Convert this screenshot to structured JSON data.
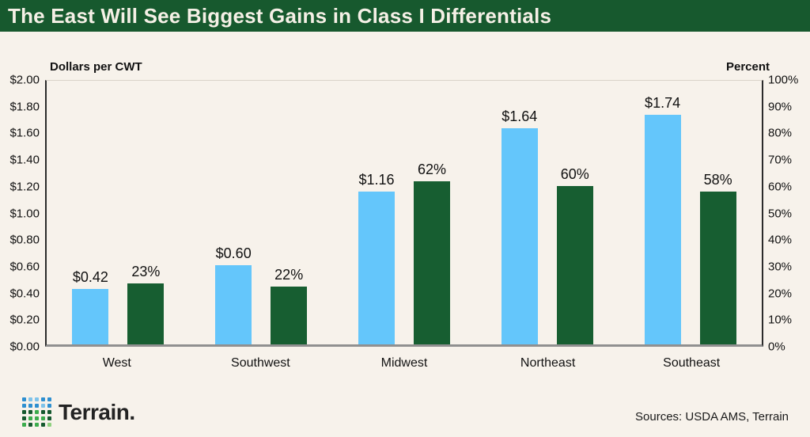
{
  "header": {
    "title": "The East Will See Biggest Gains in Class I Differentials"
  },
  "chart_data": {
    "type": "bar",
    "title": "The East Will See Biggest Gains in Class I Differentials",
    "categories": [
      "West",
      "Southwest",
      "Midwest",
      "Northeast",
      "Southeast"
    ],
    "series": [
      {
        "name": "Dollars per CWT",
        "axis": "left",
        "color": "#64C6FB",
        "values": [
          0.42,
          0.6,
          1.16,
          1.64,
          1.74
        ],
        "labels": [
          "$0.42",
          "$0.60",
          "$1.16",
          "$1.64",
          "$1.74"
        ]
      },
      {
        "name": "Percent",
        "axis": "right",
        "color": "#175E31",
        "values": [
          23,
          22,
          62,
          60,
          58
        ],
        "labels": [
          "23%",
          "22%",
          "62%",
          "60%",
          "58%"
        ]
      }
    ],
    "left_axis": {
      "title": "Dollars per CWT",
      "min": 0,
      "max": 2,
      "tick_step": 0.2,
      "ticks": [
        "$2.00",
        "$1.80",
        "$1.60",
        "$1.40",
        "$1.20",
        "$1.00",
        "$0.80",
        "$0.60",
        "$0.40",
        "$0.20",
        "$0.00"
      ]
    },
    "right_axis": {
      "title": "Percent",
      "min": 0,
      "max": 100,
      "tick_step": 10,
      "ticks": [
        "100%",
        "90%",
        "80%",
        "70%",
        "60%",
        "50%",
        "40%",
        "30%",
        "20%",
        "10%",
        "0%"
      ]
    },
    "grid": false,
    "legend": "none"
  },
  "footer": {
    "wordmark": "Terrain.",
    "sources": "Sources: USDA AMS, Terrain",
    "logo_grid": [
      [
        "#2E8FD0",
        "#7FC3EA",
        "#7FC3EA",
        "#2E8FD0",
        "#2E8FD0"
      ],
      [
        "#2E8FD0",
        "#2E8FD0",
        "#2E8FD0",
        "#7FC3EA",
        "#2E8FD0"
      ],
      [
        "#16592F",
        "#16592F",
        "#3CAC4D",
        "#16592F",
        "#16592F"
      ],
      [
        "#16592F",
        "#3CAC4D",
        "#3CAC4D",
        "#3CAC4D",
        "#16592F"
      ],
      [
        "#3CAC4D",
        "#16592F",
        "#3CAC4D",
        "#16592F",
        "#8ED07F"
      ]
    ]
  },
  "colors": {
    "background": "#F7F2EB",
    "header_green": "#17592E",
    "bar_blue": "#64C6FB",
    "bar_green": "#175E31",
    "axis_line": "#2B2B2B",
    "baseline_gray": "#909090",
    "title_text": "#F5F0E6",
    "text": "#1A1A1A"
  }
}
